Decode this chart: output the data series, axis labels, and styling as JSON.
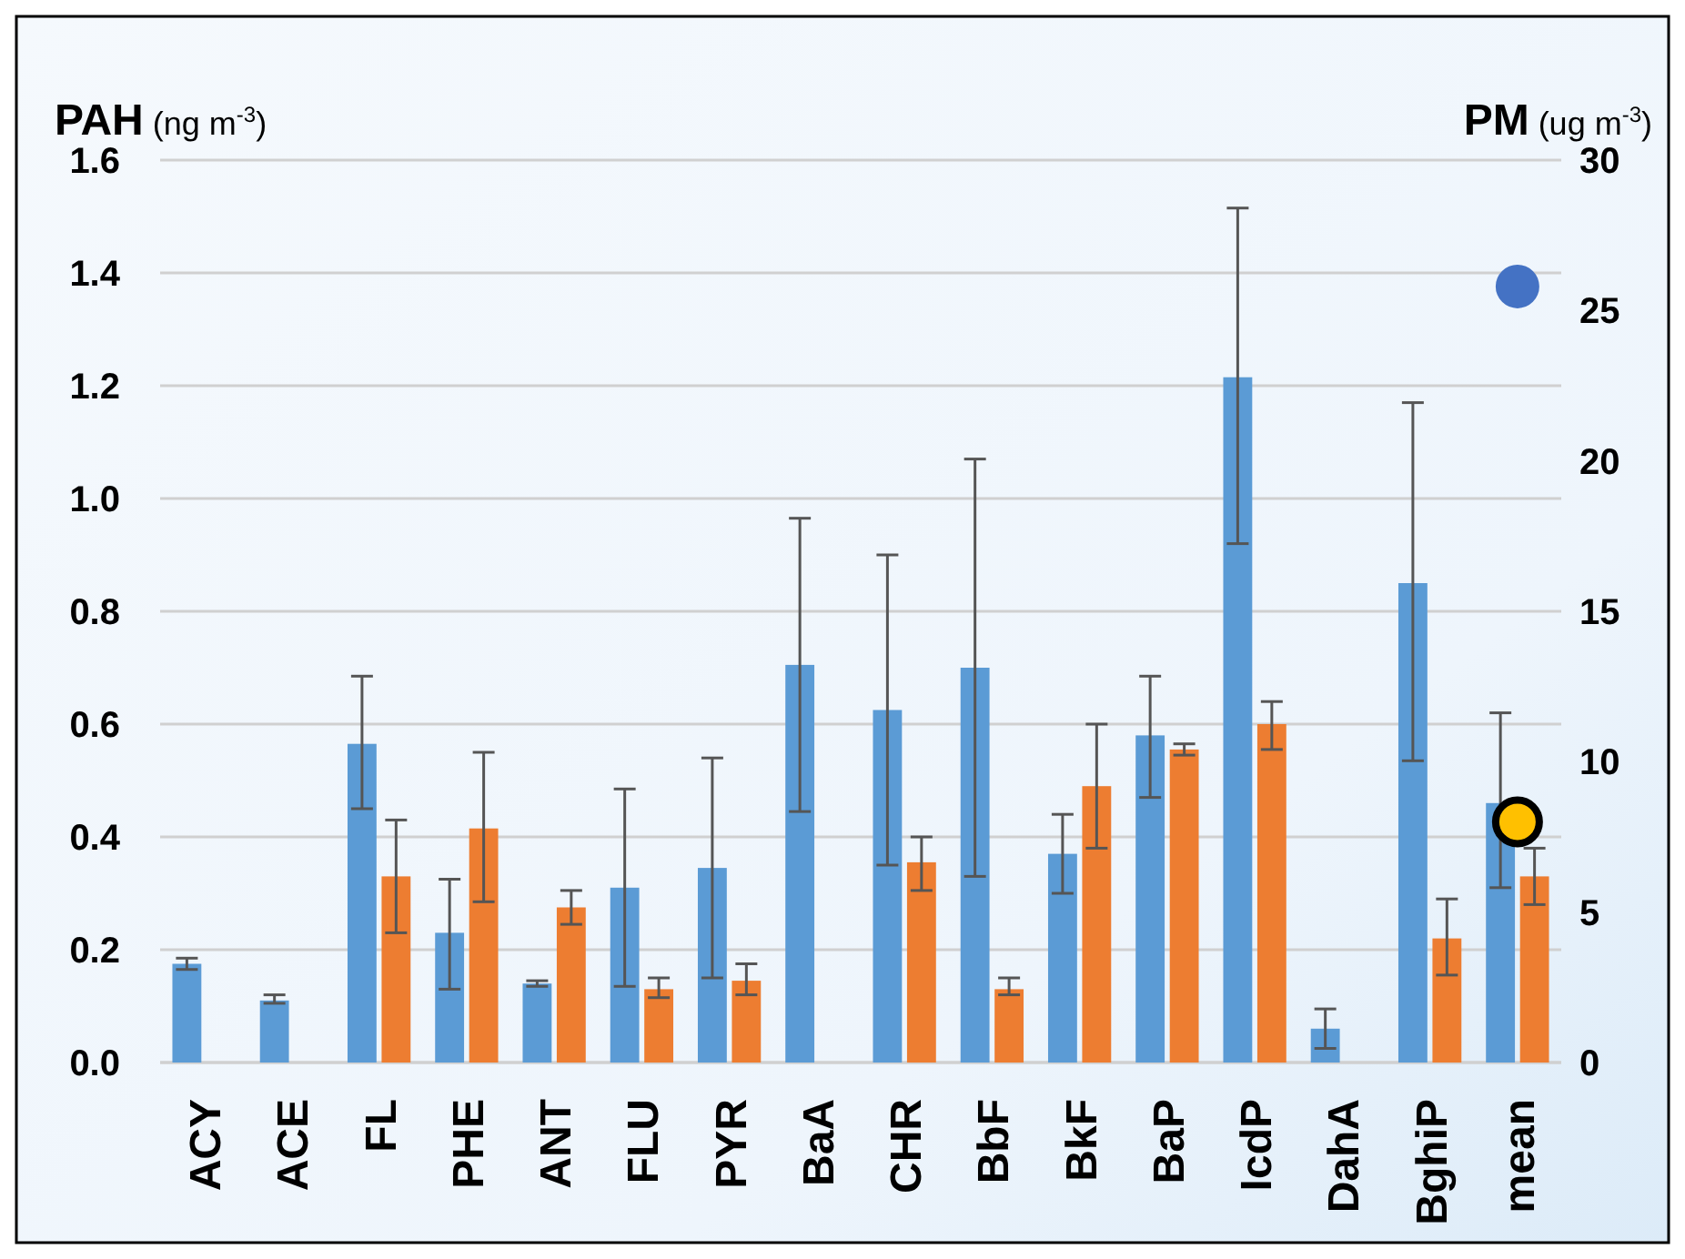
{
  "chart_data": {
    "type": "bar",
    "ylabel": "PAH (ng m$^{-3}$)",
    "y2label": "PM (ug m$^{-3}$)",
    "categories": [
      "ACY",
      "ACE",
      "FL",
      "PHE",
      "ANT",
      "FLU",
      "PYR",
      "BaA",
      "CHR",
      "BbF",
      "BkF",
      "BaP",
      "IcdP",
      "DahA",
      "BghiP",
      "mean"
    ],
    "series": [
      {
        "color": "#5b9bd5",
        "values": [
          0.175,
          0.11,
          0.565,
          0.23,
          0.14,
          0.31,
          0.345,
          0.705,
          0.625,
          0.7,
          0.37,
          0.58,
          1.215,
          0.06,
          0.85,
          0.46
        ],
        "errors": [
          [
            0.165,
            0.185
          ],
          [
            0.105,
            0.12
          ],
          [
            0.45,
            0.685
          ],
          [
            0.13,
            0.325
          ],
          [
            0.135,
            0.145
          ],
          [
            0.135,
            0.485
          ],
          [
            0.15,
            0.54
          ],
          [
            0.445,
            0.965
          ],
          [
            0.35,
            0.9
          ],
          [
            0.33,
            1.07
          ],
          [
            0.3,
            0.44
          ],
          [
            0.47,
            0.685
          ],
          [
            0.92,
            1.515
          ],
          [
            0.025,
            0.095
          ],
          [
            0.535,
            1.17
          ],
          [
            0.31,
            0.62
          ]
        ]
      },
      {
        "color": "#ed7d31",
        "values": [
          null,
          null,
          0.33,
          0.415,
          0.275,
          0.13,
          0.145,
          null,
          0.355,
          0.13,
          0.49,
          0.555,
          0.6,
          null,
          0.22,
          0.33
        ],
        "errors": [
          null,
          null,
          [
            0.23,
            0.43
          ],
          [
            0.285,
            0.55
          ],
          [
            0.245,
            0.305
          ],
          [
            0.115,
            0.15
          ],
          [
            0.12,
            0.175
          ],
          null,
          [
            0.305,
            0.4
          ],
          [
            0.12,
            0.15
          ],
          [
            0.38,
            0.6
          ],
          [
            0.545,
            0.565
          ],
          [
            0.555,
            0.64
          ],
          null,
          [
            0.155,
            0.29
          ],
          [
            0.28,
            0.38
          ]
        ]
      },
      {
        "type": "scatter",
        "axis": "y2",
        "color": "#4472c4",
        "x": [
          "mean"
        ],
        "values": [
          25.8
        ]
      },
      {
        "type": "scatter",
        "axis": "y2",
        "color": "#ffc000",
        "x": [
          "mean"
        ],
        "values": [
          8.0
        ]
      }
    ],
    "ylim": [
      0,
      1.6
    ],
    "yticks": [
      {
        "value": 0,
        "label": "0.0"
      },
      {
        "value": 0.2,
        "label": "0.2"
      },
      {
        "value": 0.4,
        "label": "0.4"
      },
      {
        "value": 0.6,
        "label": "0.6"
      },
      {
        "value": 0.8,
        "label": "0.8"
      },
      {
        "value": 1.0,
        "label": "1.0"
      },
      {
        "value": 1.2,
        "label": "1.2"
      },
      {
        "value": 1.4,
        "label": "1.4"
      },
      {
        "value": 1.6,
        "label": "1.6"
      }
    ],
    "y2lim": [
      0,
      30
    ],
    "y2ticks": [
      0,
      5,
      10,
      15,
      20,
      25,
      30
    ],
    "grid": "y",
    "marker": "circle"
  }
}
